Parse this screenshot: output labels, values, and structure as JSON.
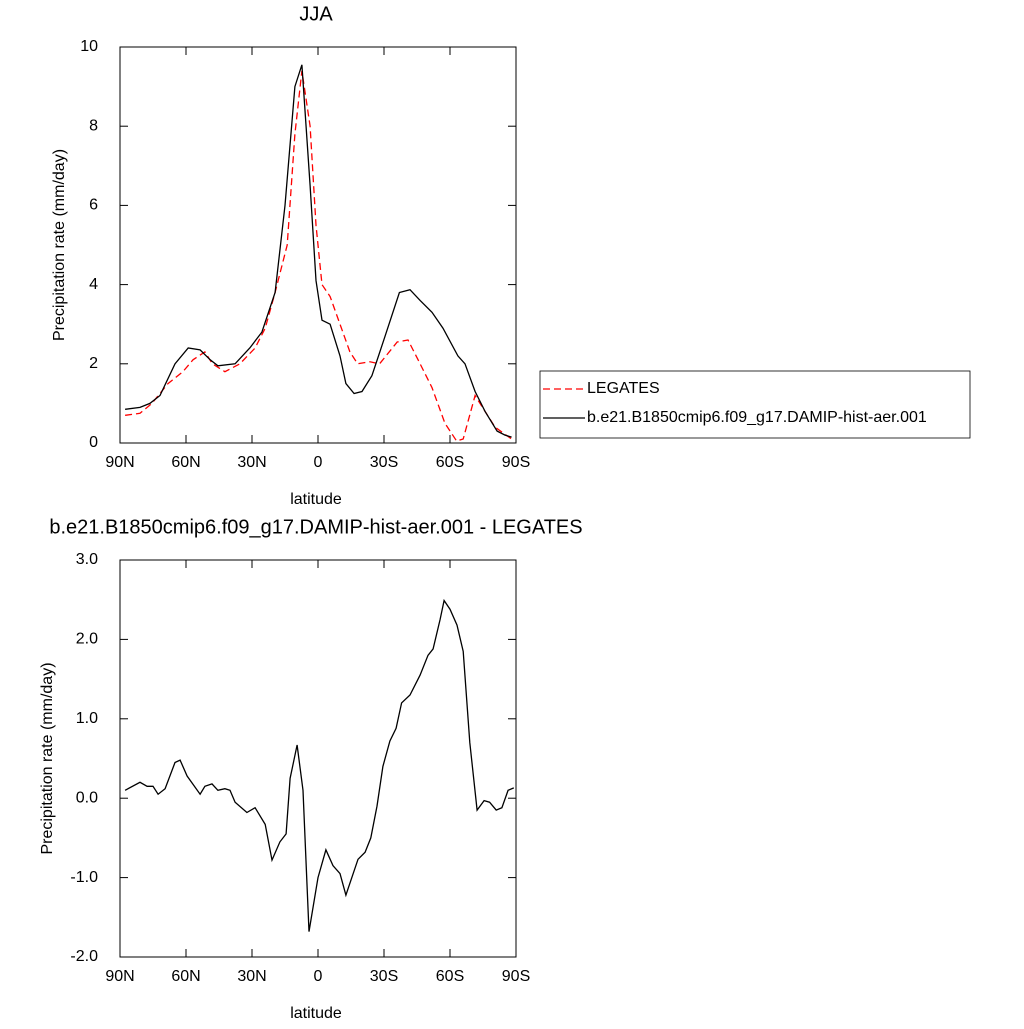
{
  "chart_data": [
    {
      "type": "line",
      "title": "JJA",
      "x_label": "latitude",
      "y_label": "Precipitation rate (mm/day)",
      "xlim": [
        90,
        -90
      ],
      "xticks": [
        {
          "value": 90,
          "label": "90N"
        },
        {
          "value": 60,
          "label": "60N"
        },
        {
          "value": 30,
          "label": "30N"
        },
        0,
        {
          "value": -30,
          "label": "30S"
        },
        {
          "value": -60,
          "label": "60S"
        },
        {
          "value": -90,
          "label": "90S"
        }
      ],
      "ylim": [
        0,
        10
      ],
      "yticks": [
        0,
        2,
        4,
        6,
        8,
        10
      ],
      "legend": "right",
      "series": [
        {
          "name": "LEGATES",
          "color": "#ff0000",
          "style": "dashed",
          "x": [
            87.7,
            80.9,
            75.5,
            68.2,
            61.4,
            56.8,
            51.4,
            48,
            42.3,
            35.5,
            28.6,
            24,
            19.5,
            14,
            10.5,
            7.3,
            3.6,
            0.9,
            -1.8,
            -5.5,
            -10,
            -14.5,
            -18,
            -23.6,
            -28,
            -36,
            -40.9,
            -45.5,
            -51.8,
            -57.7,
            -63,
            -66,
            -71.4,
            -75.9,
            -80.5,
            -88
          ],
          "values": [
            0.7,
            0.75,
            1.0,
            1.5,
            1.8,
            2.1,
            2.3,
            2.0,
            1.8,
            2.0,
            2.4,
            2.9,
            3.8,
            5.0,
            7.8,
            9.4,
            8.0,
            5.5,
            4.0,
            3.7,
            3.0,
            2.3,
            2.0,
            2.05,
            2.0,
            2.55,
            2.6,
            2.1,
            1.4,
            0.5,
            0.05,
            0.1,
            1.2,
            0.8,
            0.4,
            0.1
          ]
        },
        {
          "name": "b.e21.B1850cmip6.f09_g17.DAMIP-hist-aer.001",
          "color": "#000000",
          "style": "solid",
          "x": [
            87.7,
            80.9,
            76.4,
            71.8,
            65,
            59,
            53.6,
            49,
            45.5,
            37.7,
            31,
            25.5,
            19.5,
            15,
            10.5,
            7.3,
            3.6,
            0.9,
            -1.8,
            -5.5,
            -10,
            -12.7,
            -16.4,
            -20,
            -24.5,
            -30.5,
            -37,
            -41.8,
            -46.4,
            -51.8,
            -56.8,
            -63.6,
            -66.8,
            -71.4,
            -75.9,
            -81.4,
            -85,
            -88
          ],
          "values": [
            0.85,
            0.9,
            1.0,
            1.2,
            2.0,
            2.4,
            2.35,
            2.1,
            1.95,
            2.0,
            2.4,
            2.8,
            3.8,
            6.0,
            9.0,
            9.55,
            6.5,
            4.1,
            3.1,
            3.0,
            2.2,
            1.5,
            1.25,
            1.3,
            1.7,
            2.7,
            3.8,
            3.87,
            3.6,
            3.3,
            2.9,
            2.2,
            2.0,
            1.3,
            0.8,
            0.3,
            0.2,
            0.15
          ]
        }
      ]
    },
    {
      "type": "line",
      "title": "b.e21.B1850cmip6.f09_g17.DAMIP-hist-aer.001 - LEGATES",
      "x_label": "latitude",
      "y_label": "Precipitation rate (mm/day)",
      "xlim": [
        90,
        -90
      ],
      "xticks": [
        {
          "value": 90,
          "label": "90N"
        },
        {
          "value": 60,
          "label": "60N"
        },
        {
          "value": 30,
          "label": "30N"
        },
        0,
        {
          "value": -30,
          "label": "30S"
        },
        {
          "value": -60,
          "label": "60S"
        },
        {
          "value": -90,
          "label": "90S"
        }
      ],
      "ylim": [
        -2,
        3
      ],
      "yticks": [
        {
          "value": -2,
          "label": "-2.0"
        },
        {
          "value": -1,
          "label": "-1.0"
        },
        {
          "value": 0,
          "label": "0.0"
        },
        {
          "value": 1,
          "label": "1.0"
        },
        {
          "value": 2,
          "label": "2.0"
        },
        {
          "value": 3,
          "label": "3.0"
        }
      ],
      "series": [
        {
          "color": "#000000",
          "style": "solid",
          "x": [
            87.7,
            80.9,
            77.7,
            75,
            72.7,
            69.5,
            65,
            62.7,
            59.5,
            53.6,
            51.4,
            48.2,
            45.5,
            42.3,
            40,
            37.7,
            32.3,
            28.6,
            24,
            20.9,
            17.3,
            14.5,
            12.7,
            9.5,
            6.8,
            4.1,
            0,
            -3.6,
            -6.8,
            -10,
            -12.7,
            -18.2,
            -21.4,
            -24,
            -26.8,
            -29.5,
            -32.7,
            -35.5,
            -38,
            -41.8,
            -46.4,
            -50,
            -52.3,
            -55.5,
            -57.3,
            -60,
            -63.2,
            -66,
            -69,
            -72.3,
            -75.5,
            -78,
            -81,
            -83.6,
            -86.4,
            -89
          ],
          "values": [
            0.1,
            0.2,
            0.15,
            0.15,
            0.05,
            0.12,
            0.45,
            0.48,
            0.28,
            0.05,
            0.15,
            0.18,
            0.1,
            0.12,
            0.1,
            -0.05,
            -0.18,
            -0.12,
            -0.33,
            -0.78,
            -0.55,
            -0.45,
            0.25,
            0.67,
            0.1,
            -1.68,
            -1.0,
            -0.65,
            -0.85,
            -0.95,
            -1.22,
            -0.77,
            -0.68,
            -0.5,
            -0.1,
            0.4,
            0.72,
            0.88,
            1.2,
            1.3,
            1.55,
            1.8,
            1.88,
            2.25,
            2.49,
            2.38,
            2.18,
            1.85,
            0.7,
            -0.15,
            -0.03,
            -0.05,
            -0.15,
            -0.12,
            0.1,
            0.13
          ]
        }
      ]
    }
  ]
}
